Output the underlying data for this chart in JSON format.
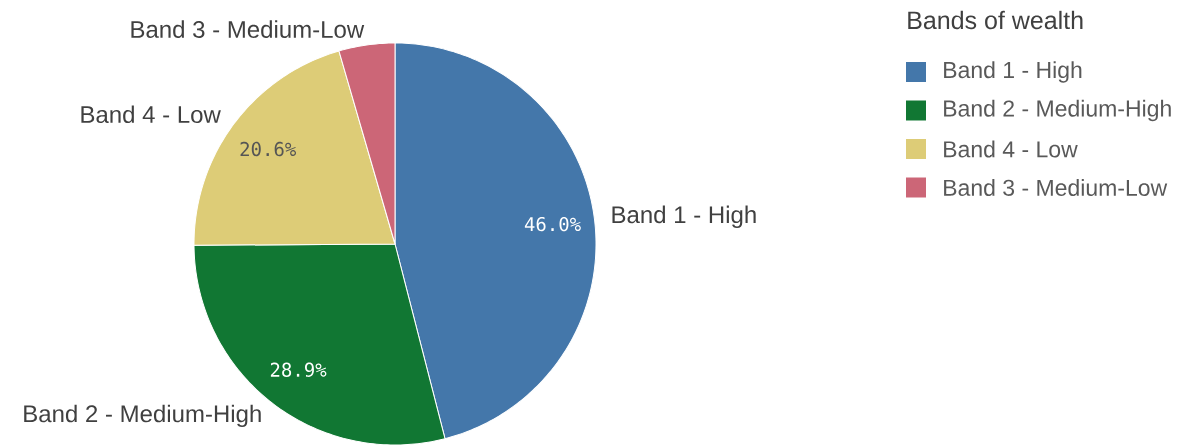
{
  "chart_data": {
    "type": "pie",
    "legend_title": "Bands of wealth",
    "categories": [
      "Band 1 - High",
      "Band 2 - Medium-High",
      "Band 4 - Low",
      "Band 3 - Medium-Low"
    ],
    "values": [
      46.0,
      28.9,
      20.6,
      4.5
    ],
    "colors": [
      "#4477aa",
      "#117733",
      "#ddcc77",
      "#cc6677"
    ],
    "value_labels": [
      "46.0%",
      "28.9%",
      "20.6%",
      null
    ],
    "legend": "top right"
  }
}
